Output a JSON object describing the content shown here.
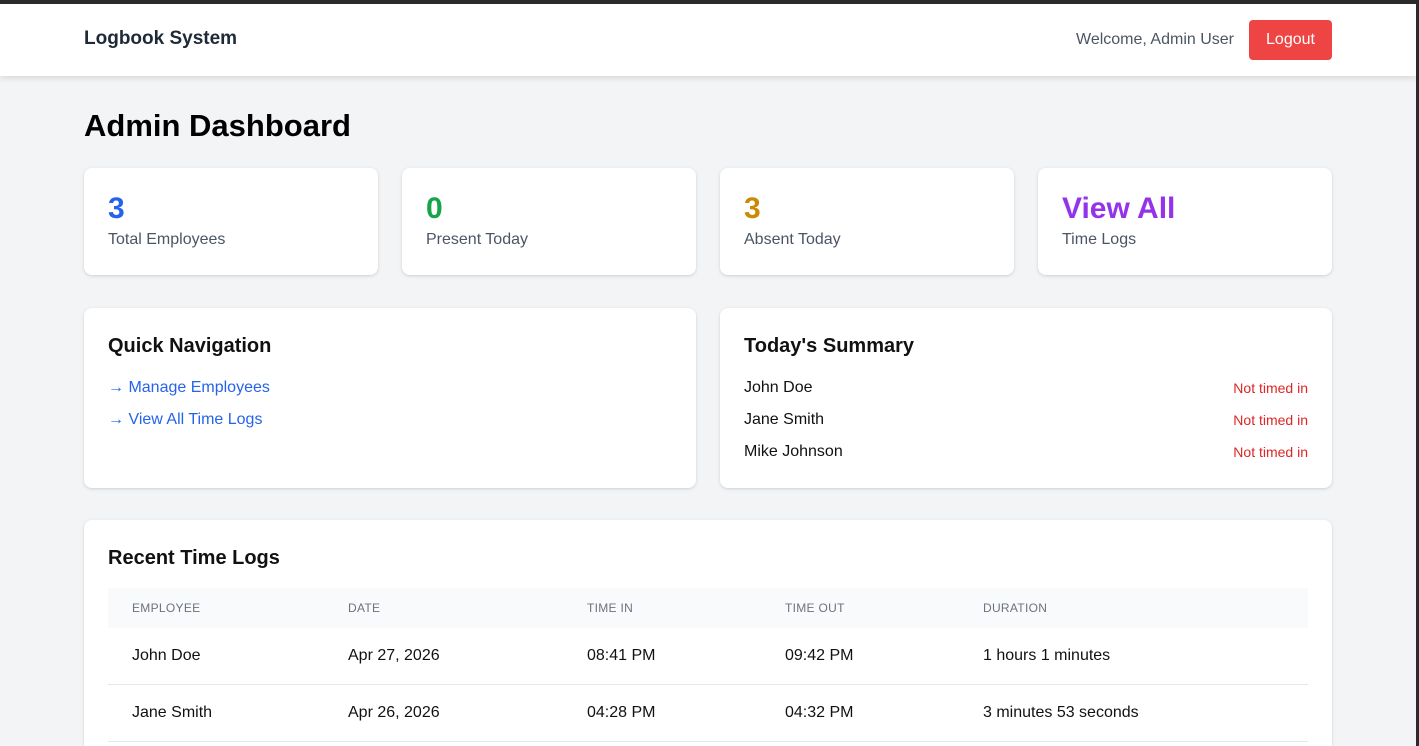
{
  "header": {
    "brand": "Logbook System",
    "welcome": "Welcome, Admin User",
    "logout_label": "Logout"
  },
  "page": {
    "title": "Admin Dashboard"
  },
  "stats": [
    {
      "value": "3",
      "label": "Total Employees",
      "color": "#2563eb"
    },
    {
      "value": "0",
      "label": "Present Today",
      "color": "#16a34a"
    },
    {
      "value": "3",
      "label": "Absent Today",
      "color": "#ca8a04"
    },
    {
      "value": "View All",
      "label": "Time Logs",
      "color": "#9333ea"
    }
  ],
  "quick_nav": {
    "title": "Quick Navigation",
    "links": [
      "→ Manage Employees",
      "→ View All Time Logs"
    ]
  },
  "summary": {
    "title": "Today's Summary",
    "items": [
      {
        "name": "John Doe",
        "status": "Not timed in"
      },
      {
        "name": "Jane Smith",
        "status": "Not timed in"
      },
      {
        "name": "Mike Johnson",
        "status": "Not timed in"
      }
    ]
  },
  "recent_logs": {
    "title": "Recent Time Logs",
    "columns": [
      "Employee",
      "Date",
      "Time In",
      "Time Out",
      "Duration"
    ],
    "rows": [
      [
        "John Doe",
        "Apr 27, 2026",
        "08:41 PM",
        "09:42 PM",
        "1 hours 1 minutes"
      ],
      [
        "Jane Smith",
        "Apr 26, 2026",
        "04:28 PM",
        "04:32 PM",
        "3 minutes 53 seconds"
      ]
    ]
  }
}
